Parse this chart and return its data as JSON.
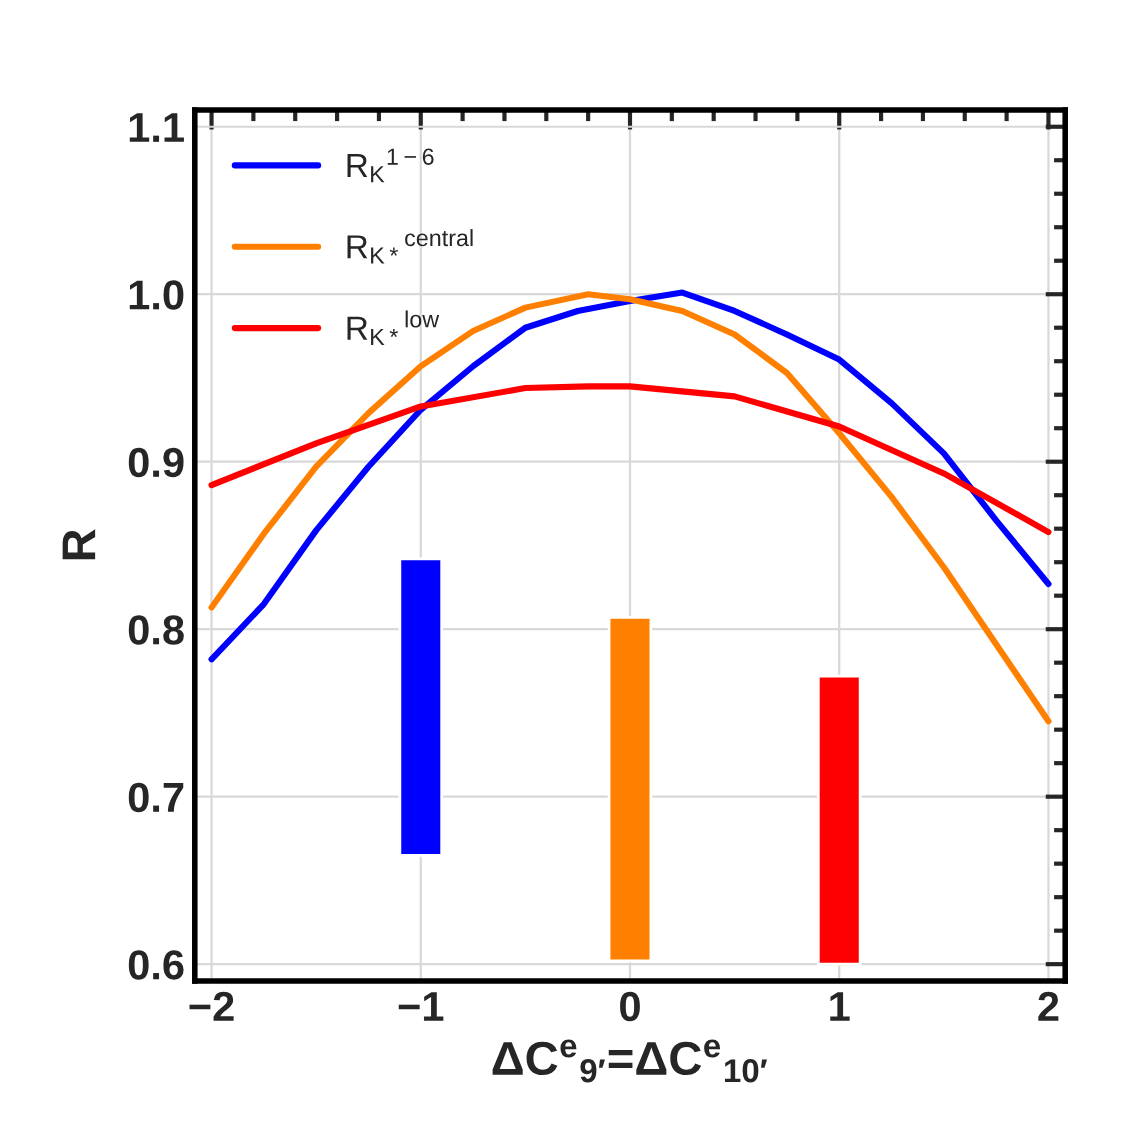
{
  "chart_data": {
    "type": "line",
    "xlabel": "ΔC$^{e}$$_{9′}$=ΔC$^{e}$$_{10′}$",
    "ylabel": "R",
    "xlim": [
      -2.08,
      2.08
    ],
    "ylim": [
      0.59,
      1.11
    ],
    "xticks": [
      {
        "value": -2,
        "label": "−2"
      },
      {
        "value": -1,
        "label": "−1"
      },
      0,
      1,
      2
    ],
    "yticks": [
      0.6,
      {
        "value": 0.7,
        "label": "0.7"
      },
      {
        "value": 0.8,
        "label": "0.8"
      },
      {
        "value": 0.9,
        "label": "0.9"
      },
      {
        "value": 1.0,
        "label": "1.0"
      },
      {
        "value": 1.1,
        "label": "1.1"
      }
    ],
    "grid": true,
    "legend": "top left",
    "series": [
      {
        "name": "R$_{K}$$^{1−6}$",
        "color": "#0000ff",
        "x": [
          -2,
          -1.75,
          -1.5,
          -1.25,
          -1,
          -0.75,
          -0.5,
          -0.25,
          0,
          0.25,
          0.5,
          0.75,
          1,
          1.25,
          1.5,
          1.75,
          2
        ],
        "values": [
          0.782,
          0.815,
          0.859,
          0.897,
          0.931,
          0.957,
          0.98,
          0.99,
          0.996,
          1.001,
          0.99,
          0.976,
          0.961,
          0.935,
          0.905,
          0.865,
          0.827
        ]
      },
      {
        "name": "R$_{K*}$$^{central}$",
        "color": "#ff8000",
        "x": [
          -2,
          -1.75,
          -1.5,
          -1.25,
          -1,
          -0.75,
          -0.5,
          -0.2,
          0,
          0.25,
          0.5,
          0.75,
          1,
          1.25,
          1.5,
          1.75,
          2
        ],
        "values": [
          0.813,
          0.857,
          0.897,
          0.929,
          0.957,
          0.978,
          0.992,
          1.0,
          0.997,
          0.99,
          0.976,
          0.953,
          0.917,
          0.879,
          0.837,
          0.791,
          0.745
        ]
      },
      {
        "name": "R$_{K*}$$^{low}$",
        "color": "#ff0000",
        "x": [
          -2,
          -1.5,
          -1,
          -0.5,
          -0.2,
          0,
          0.5,
          1,
          1.5,
          2
        ],
        "values": [
          0.886,
          0.911,
          0.933,
          0.944,
          0.945,
          0.945,
          0.939,
          0.921,
          0.893,
          0.858
        ]
      },
      {
        "type": "bar",
        "x": [
          -1,
          0,
          1
        ],
        "base": [
          0.665,
          0.602,
          0.6
        ],
        "values": [
          0.177,
          0.205,
          0.172
        ],
        "colors": [
          "#0000ff",
          "#ff8000",
          "#ff0000"
        ]
      }
    ]
  }
}
